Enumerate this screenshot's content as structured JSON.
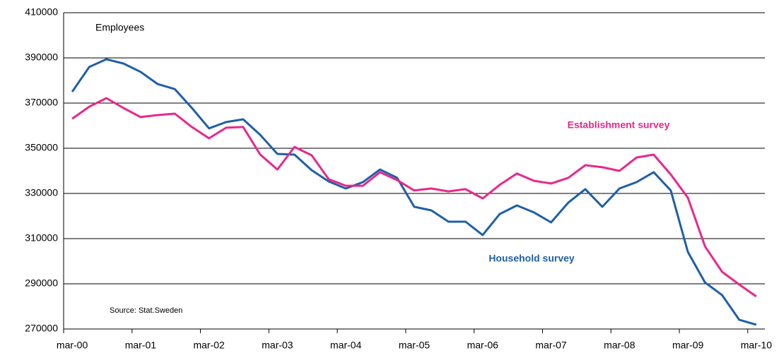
{
  "chart_data": {
    "type": "line",
    "annotations": [
      "Employees",
      "Source: Stat.Sweden"
    ],
    "categories": [
      "mar-00",
      null,
      null,
      null,
      "mar-01",
      null,
      null,
      null,
      "mar-02",
      null,
      null,
      null,
      "mar-03",
      null,
      null,
      null,
      "mar-04",
      null,
      null,
      null,
      "mar-05",
      null,
      null,
      null,
      "mar-06",
      null,
      null,
      null,
      "mar-07",
      null,
      null,
      null,
      "mar-08",
      null,
      null,
      null,
      "mar-09",
      null,
      null,
      null,
      "mar-10"
    ],
    "series": [
      {
        "name": "Household survey",
        "color": "#1f5fa8",
        "values": [
          375000,
          386000,
          389400,
          387500,
          383800,
          378400,
          376200,
          367800,
          358800,
          361600,
          362800,
          355900,
          347500,
          347200,
          340300,
          335300,
          332200,
          335000,
          340600,
          336900,
          324100,
          322500,
          317500,
          317500,
          311600,
          320900,
          324700,
          321600,
          317200,
          325900,
          331900,
          324100,
          332200,
          335000,
          339400,
          331300,
          304100,
          290600,
          285000,
          274100,
          271900
        ]
      },
      {
        "name": "Establishment survey",
        "color": "#e8288a",
        "values": [
          363100,
          368400,
          372200,
          367800,
          363800,
          364700,
          365300,
          359400,
          354400,
          359100,
          359400,
          347200,
          340600,
          350600,
          346900,
          336300,
          333400,
          333400,
          339400,
          335900,
          331300,
          332200,
          330900,
          331900,
          327800,
          333800,
          338800,
          335600,
          334400,
          336900,
          342500,
          341600,
          340000,
          345900,
          347200,
          338400,
          328100,
          306600,
          295300,
          289700,
          284400
        ]
      }
    ],
    "ylim": [
      270000,
      410000
    ],
    "yticks": [
      270000,
      290000,
      310000,
      330000,
      350000,
      370000,
      390000,
      410000
    ],
    "grid": true
  }
}
